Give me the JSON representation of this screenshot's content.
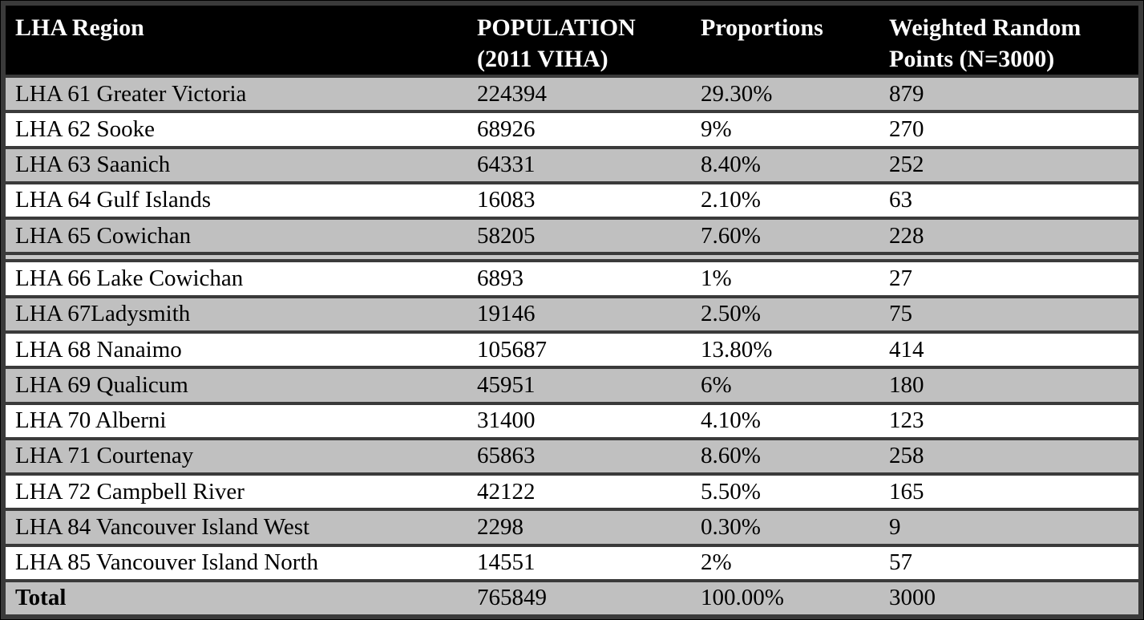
{
  "table": {
    "header": [
      "LHA Region",
      "POPULATION (2011 VIHA)",
      "Proportions",
      "Weighted Random Points (N=3000)"
    ],
    "sections": [
      {
        "rows": [
          {
            "region": "LHA 61 Greater Victoria",
            "population": "224394",
            "proportion": "29.30%",
            "points": "879"
          },
          {
            "region": "LHA 62 Sooke",
            "population": "68926",
            "proportion": "9%",
            "points": "270"
          },
          {
            "region": "LHA 63 Saanich",
            "population": "64331",
            "proportion": "8.40%",
            "points": "252"
          },
          {
            "region": "LHA 64 Gulf Islands",
            "population": "16083",
            "proportion": "2.10%",
            "points": "63"
          },
          {
            "region": "LHA 65 Cowichan",
            "population": "58205",
            "proportion": "7.60%",
            "points": "228"
          }
        ]
      },
      {
        "rows": [
          {
            "region": "LHA 66 Lake Cowichan",
            "population": "6893",
            "proportion": "1%",
            "points": "27"
          },
          {
            "region": "LHA 67Ladysmith",
            "population": "19146",
            "proportion": "2.50%",
            "points": "75"
          },
          {
            "region": "LHA 68 Nanaimo",
            "population": "105687",
            "proportion": "13.80%",
            "points": "414"
          },
          {
            "region": "LHA 69 Qualicum",
            "population": "45951",
            "proportion": "6%",
            "points": "180"
          },
          {
            "region": "LHA 70 Alberni",
            "population": "31400",
            "proportion": "4.10%",
            "points": "123"
          },
          {
            "region": "LHA 71 Courtenay",
            "population": "65863",
            "proportion": "8.60%",
            "points": "258"
          },
          {
            "region": "LHA 72 Campbell River",
            "population": "42122",
            "proportion": "5.50%",
            "points": "165"
          },
          {
            "region": "LHA 84 Vancouver Island West",
            "population": "2298",
            "proportion": "0.30%",
            "points": "9"
          },
          {
            "region": "LHA 85 Vancouver Island North",
            "population": "14551",
            "proportion": "2%",
            "points": "57"
          }
        ]
      }
    ],
    "total_row": {
      "region": "Total",
      "population": "765849",
      "proportion": "100.00%",
      "points": "3000"
    }
  },
  "colors": {
    "header_bg": "#000000",
    "header_text": "#ffffff",
    "row_gray": "#c0c0c0",
    "row_white": "#ffffff",
    "grid_line": "#3a3a3a",
    "section_gap": "#c8c8c8",
    "text": "#000000"
  }
}
